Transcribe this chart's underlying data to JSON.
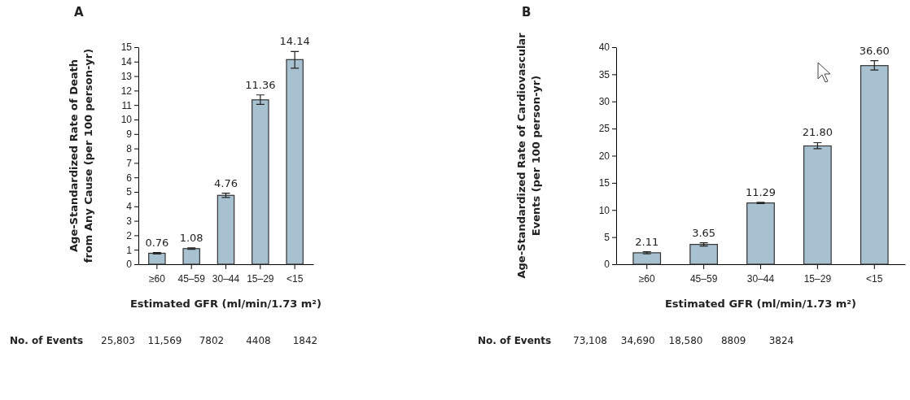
{
  "chart_data": [
    {
      "type": "bar",
      "title": "A",
      "ylabel": "Age-Standardized Rate of Death\nfrom Any Cause (per 100 person-yr)",
      "xlabel": "Estimated GFR (ml/min/1.73 m²)",
      "categories": [
        "≥60",
        "45–59",
        "30–44",
        "15–29",
        "<15"
      ],
      "values": [
        0.76,
        1.08,
        4.76,
        11.36,
        14.14
      ],
      "value_labels": [
        "0.76",
        "1.08",
        "4.76",
        "11.36",
        "14.14"
      ],
      "errors": [
        0.05,
        0.05,
        0.15,
        [
          11.05,
          11.7
        ],
        [
          13.55,
          14.7
        ]
      ],
      "color": "#a7c1d0",
      "ylim": [
        0,
        15
      ],
      "yticks": [
        0,
        1,
        2,
        3,
        4,
        5,
        6,
        7,
        8,
        9,
        10,
        11,
        12,
        13,
        14,
        15
      ],
      "grid": false,
      "annotations": [
        "No. of Events",
        "25,803",
        "11,569",
        "7802",
        "4408",
        "1842"
      ]
    },
    {
      "type": "bar",
      "title": "B",
      "ylabel": "Age-Standardized Rate of Cardiovascular\nEvents (per 100 person-yr)",
      "xlabel": "Estimated GFR (ml/min/1.73 m²)",
      "categories": [
        "≥60",
        "45–59",
        "30–44",
        "15–29",
        "<15"
      ],
      "values": [
        2.11,
        3.65,
        11.29,
        21.8,
        36.6
      ],
      "value_labels": [
        "2.11",
        "3.65",
        "11.29",
        "21.80",
        "36.60"
      ],
      "errors": [
        0.2,
        0.3,
        0.1,
        [
          21.3,
          22.4
        ],
        [
          35.8,
          37.5
        ]
      ],
      "color": "#a7c1d0",
      "ylim": [
        0,
        40
      ],
      "yticks": [
        0,
        5,
        10,
        15,
        20,
        25,
        30,
        35,
        40
      ],
      "grid": false,
      "annotations": [
        "No. of Events",
        "73,108",
        "34,690",
        "18,580",
        "8809",
        "3824"
      ]
    }
  ]
}
